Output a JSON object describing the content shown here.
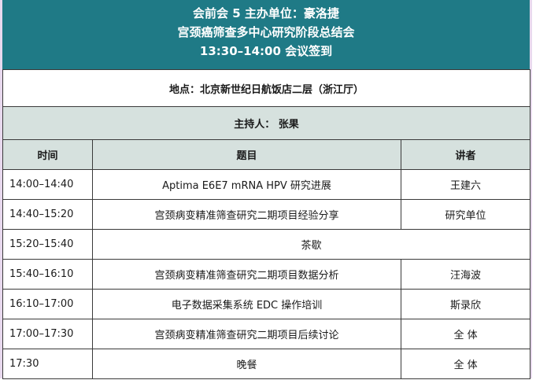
{
  "header": {
    "line1": "会前会 5   主办单位：豪洛捷",
    "line2": "宫颈癌筛查多中心研究阶段总结会",
    "line3": "13:30–14:00 会议签到"
  },
  "venue": "地点：北京新世纪日航饭店二层（浙江厅）",
  "host": "主持人：  张果",
  "columns": {
    "time": "时间",
    "topic": "题目",
    "speaker": "讲者"
  },
  "rows": [
    {
      "time": "14:00–14:40",
      "topic": "Aptima E6E7 mRNA HPV 研究进展",
      "speaker": "王建六"
    },
    {
      "time": "14:40–15:20",
      "topic": "宫颈病变精准筛查研究二期项目经验分享",
      "speaker": "研究单位"
    },
    {
      "time": "15:20–15:40",
      "topic": "茶歇",
      "speaker": ""
    },
    {
      "time": "15:40–16:10",
      "topic": "宫颈病变精准筛查研究二期项目数据分析",
      "speaker": "汪海波"
    },
    {
      "time": "16:10–17:00",
      "topic": "电子数据采集系统 EDC 操作培训",
      "speaker": "斯录欣"
    },
    {
      "time": "17:00–17:30",
      "topic": "宫颈病变精准筛查研究二期项目后续讨论",
      "speaker": "全   体"
    },
    {
      "time": "17:30",
      "topic": "晚餐",
      "speaker": "全   体"
    }
  ]
}
